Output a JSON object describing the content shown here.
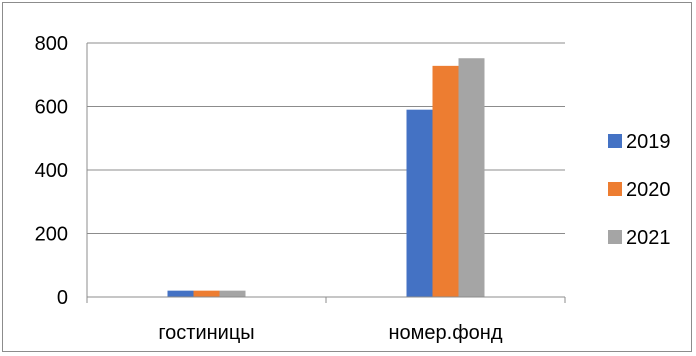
{
  "chart_data": {
    "type": "bar",
    "categories": [
      "гостиницы",
      "номер.фонд"
    ],
    "series": [
      {
        "name": "2019",
        "values": [
          20,
          590
        ],
        "color": "#4472C4"
      },
      {
        "name": "2020",
        "values": [
          20,
          728
        ],
        "color": "#ED7D31"
      },
      {
        "name": "2021",
        "values": [
          20,
          752
        ],
        "color": "#A5A5A5"
      }
    ],
    "y_ticks": [
      "0",
      "200",
      "400",
      "600",
      "800"
    ],
    "ylim": [
      0,
      800
    ],
    "grid": true,
    "legend_position": "right"
  }
}
